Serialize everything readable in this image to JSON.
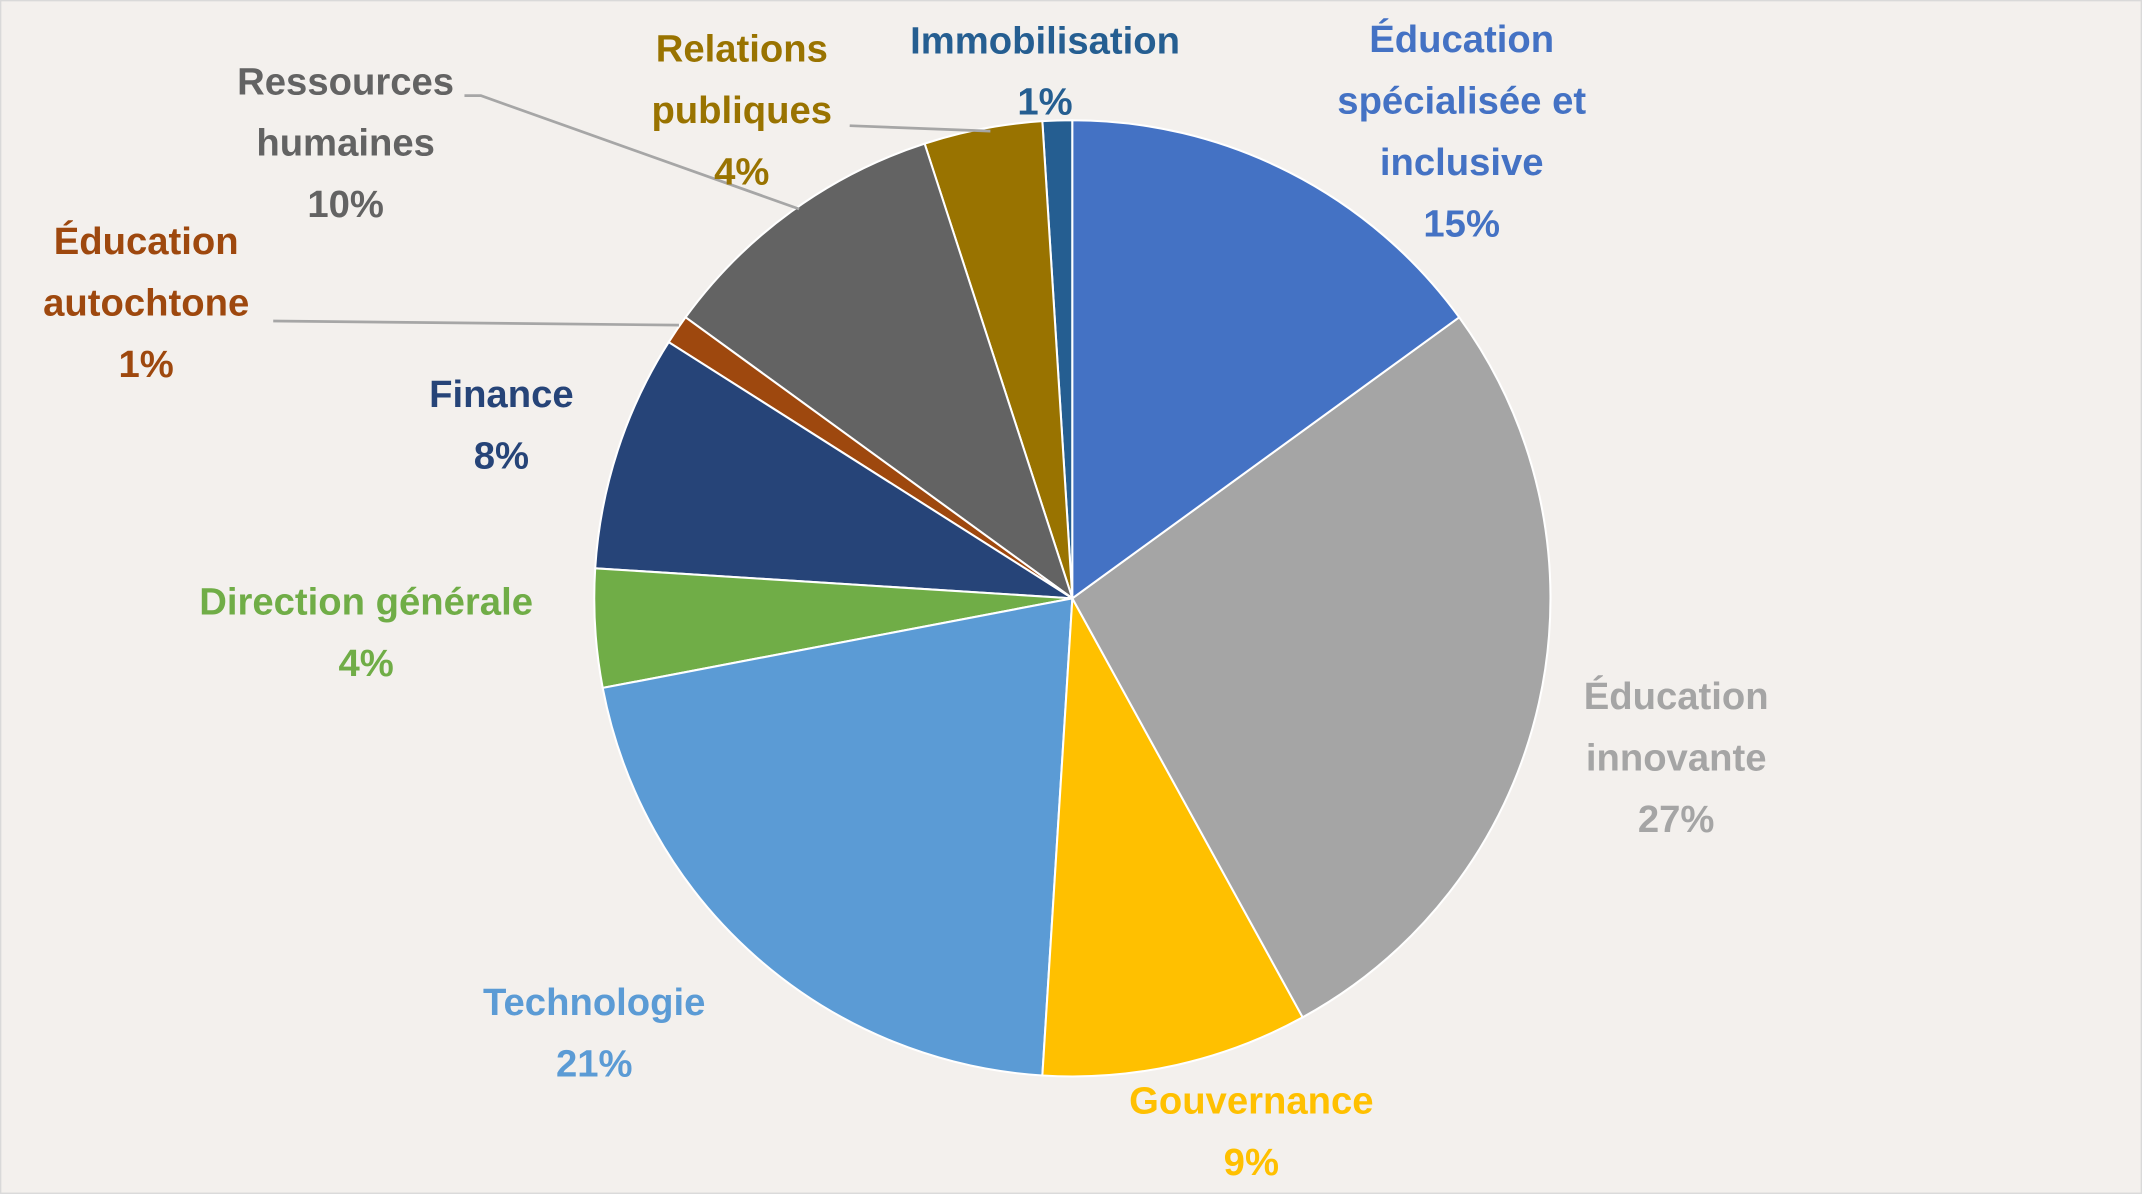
{
  "chart_data": {
    "type": "pie",
    "categories": [
      "Éducation spécialisée et inclusive",
      "Éducation innovante",
      "Gouvernance",
      "Technologie",
      "Direction générale",
      "Finance",
      "Éducation autochtone",
      "Ressources humaines",
      "Relations publiques",
      "Immobilisation"
    ],
    "values": [
      15,
      27,
      9,
      21,
      4,
      8,
      1,
      10,
      4,
      1
    ],
    "value_labels": [
      "15%",
      "27%",
      "9%",
      "21%",
      "4%",
      "8%",
      "1%",
      "10%",
      "4%",
      "1%"
    ],
    "colors": [
      "#4472c4",
      "#a5a5a5",
      "#ffc000",
      "#5b9bd5",
      "#70ad47",
      "#264478",
      "#9e480e",
      "#636363",
      "#997300",
      "#255e91"
    ]
  }
}
